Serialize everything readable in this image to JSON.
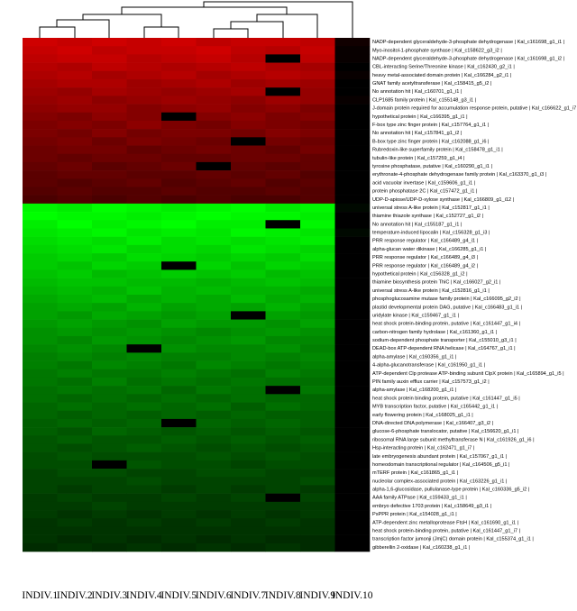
{
  "chart_data": {
    "type": "heatmap",
    "columns": [
      "INDIV.1",
      "INDIV.2",
      "INDIV.3",
      "INDIV.4",
      "INDIV.5",
      "INDIV.6",
      "INDIV.7",
      "INDIV.8",
      "INDIV.9",
      "INDIV.10"
    ],
    "rows": [
      "NADP-dependent glyceraldehyde-3-phosphate dehydrogenase | Kal_c161698_g1_i1 |",
      "Myo-inositol-1-phosphate synthase | Kal_c158622_g3_i2 |",
      "NADP-dependent glyceraldehyde-3-phosphate dehydrogenase | Kal_c161698_g1_i2 |",
      "CBL-interacting Serine/Threonine kinase | Kal_c162430_g2_i1 |",
      "heavy metal-associated domain protein | Kal_c166284_g2_i1 |",
      "GNAT family acetyltransferase | Kal_c158415_g5_i2 |",
      "No annotation hit | Kal_c160701_g1_i1 |",
      "CLP1685 family protein | Kal_c155148_g3_i1 |",
      "J-domain protein required for accumulation response protein, putative | Kal_c166622_g1_i7 |",
      "hypothetical protein | Kal_c166395_g1_i1 |",
      "F-box type zinc finger protein | Kal_c157764_g1_i1 |",
      "No annotation hit | Kal_c157841_g1_i2 |",
      "B-box type zinc finger protein | Kal_c162088_g1_i6 |",
      "Rubredoxin-like superfamily protein | Kal_c158478_g1_i1 |",
      "tubulin-like protein | Kal_c157259_g1_i4 |",
      "tyrosine phosphatase, putative | Kal_c160290_g1_i1 |",
      "erythronate-4-phosphate dehydrogenase family protein | Kal_c163370_g1_i3 |",
      "acid vacuolar invertase | Kal_c159606_g1_i1 |",
      "protein phosphatase 2C | Kal_c157472_g1_i1 |",
      "UDP-D-apiose/UDP-D-xylose synthase | Kal_c166809_g1_i12 |",
      "universal stress A-like protein | Kal_c152817_g1_i1 |",
      "thiamine thiazole synthase | Kal_c152727_g1_i2 |",
      "No annotation hit | Kal_c155187_g1_i1 |",
      "temperature-induced lipocalin | Kal_c156328_g1_i3 |",
      "PRR response regulator | Kal_c166489_g4_i1 |",
      "alpha-glucan water dikinase | Kal_c166285_g1_i1 |",
      "PRR response regulator | Kal_c166489_g4_i3 |",
      "PRR response regulator | Kal_c166489_g4_i2 |",
      "hypothetical protein | Kal_c156328_g1_i2 |",
      "thiamine biosynthesis protein ThiC | Kal_c166027_g2_i1 |",
      "universal stress A-like protein | Kal_c152816_g1_i1 |",
      "phosphoglucosamine mutase family protein | Kal_c166095_g2_i2 |",
      "plastid developmental protein DAG, putative | Kal_c166483_g1_i1 |",
      "uridylate kinase | Kal_c159467_g1_i1 |",
      "heat shock protein-binding protein, putative | Kal_c161447_g1_i4 |",
      "carbon-nitrogen family hydrolase | Kal_c161360_g1_i1 |",
      "sodium-dependent phosphate transporter | Kal_c155010_g3_i1 |",
      "DEAD-box ATP-dependent RNA helicase | Kal_c164767_g1_i1 |",
      "alpha-amylase | Kal_c160356_g1_i1 |",
      "4-alpha-glucanotransferase | Kal_c161950_g1_i1 |",
      "ATP-dependent Clp protease ATP-binding subunit ClpX protein | Kal_c165894_g1_i5 |",
      "PIN family auxin efflux carrier | Kal_c157573_g1_i2 |",
      "alpha-amylase | Kal_c168200_g1_i1 |",
      "heat shock protein binding protein, putative | Kal_c161447_g1_i5 |",
      "MYB transcription factor, putative | Kal_c165442_g1_i1 |",
      "early flowering protein | Kal_c168025_g1_i1 |",
      "DNA-directed DNA polymerase | Kal_c166407_g3_i2 |",
      "glucose-6-phosphate translocator, putative | Kal_c156620_g1_i1 |",
      "ribosomal RNA large subunit methyltransferase N | Kal_c161926_g1_i6 |",
      "Hsp-interacting protein | Kal_c162471_g1_i7 |",
      "late embryogenesis abundant protein | Kal_c157067_g1_i1 |",
      "homeodomain transcriptional regulator | Kal_c164506_g5_i1 |",
      "mTERF protein | Kal_c161865_g1_i1 |",
      "nucleolar complex-associated protein | Kal_c163226_g1_i1 |",
      "alpha-1,6-glucosidase, pullulanase-type protein | Kal_c160336_g5_i2 |",
      "AAA family ATPase | Kal_c159433_g1_i1 |",
      "embryo defective 1703 protein | Kal_c158649_g3_i1 |",
      "PsPPR protein | Kal_c154028_g1_i1 |",
      "ATP-dependent zinc metalloprotease FtsH | Kal_c161690_g1_i1 |",
      "heat shock protein-binding protein, putative | Kal_c161447_g1_i7 |",
      "transcription factor jumonji (JmjC) domain protein | Kal_c155374_g1_i1 |",
      "gibberellin 2-oxidase | Kal_c160238_g1_i1 |"
    ],
    "values": [
      [
        2.5,
        2.4,
        2.5,
        2.4,
        2.5,
        2.3,
        2.4,
        2.4,
        2.3,
        0.2
      ],
      [
        2.4,
        2.5,
        2.3,
        2.4,
        2.4,
        2.5,
        2.3,
        2.2,
        2.4,
        0.1
      ],
      [
        2.3,
        2.4,
        2.4,
        2.2,
        2.3,
        2.4,
        2.2,
        0,
        2.3,
        0.1
      ],
      [
        2.2,
        2.1,
        2.3,
        2.2,
        2.1,
        2.2,
        2.3,
        2.1,
        2.0,
        0
      ],
      [
        2.1,
        2.2,
        2.0,
        2.1,
        2.2,
        2.0,
        2.1,
        2.2,
        2.1,
        0.1
      ],
      [
        2.0,
        2.1,
        2.1,
        1.9,
        2.0,
        2.1,
        1.9,
        2.0,
        1.9,
        0
      ],
      [
        1.9,
        1.8,
        2.0,
        1.9,
        1.8,
        1.9,
        2.0,
        0,
        1.8,
        0
      ],
      [
        1.8,
        1.9,
        1.7,
        1.8,
        1.9,
        1.8,
        1.7,
        1.9,
        1.8,
        0.1
      ],
      [
        1.7,
        1.8,
        1.8,
        1.6,
        1.7,
        1.8,
        1.6,
        1.7,
        1.5,
        0
      ],
      [
        1.6,
        1.5,
        1.7,
        1.6,
        0,
        1.6,
        1.7,
        1.5,
        1.6,
        0
      ],
      [
        1.5,
        1.6,
        1.5,
        1.7,
        1.5,
        1.4,
        1.6,
        1.5,
        1.4,
        0
      ],
      [
        1.5,
        1.4,
        1.6,
        1.4,
        1.5,
        1.5,
        1.4,
        1.6,
        1.5,
        0
      ],
      [
        1.4,
        1.5,
        1.3,
        1.5,
        1.4,
        1.3,
        0,
        1.4,
        1.3,
        0
      ],
      [
        1.3,
        1.4,
        1.4,
        1.2,
        1.3,
        1.4,
        1.3,
        1.2,
        1.4,
        0
      ],
      [
        1.3,
        1.2,
        1.3,
        1.3,
        1.2,
        1.2,
        1.3,
        1.3,
        1.2,
        0
      ],
      [
        1.2,
        1.3,
        1.1,
        1.2,
        1.3,
        0,
        1.2,
        1.1,
        1.2,
        0
      ],
      [
        1.1,
        1.2,
        1.2,
        1.1,
        1.1,
        1.2,
        1.1,
        1.2,
        1.0,
        0
      ],
      [
        1.1,
        1.0,
        1.1,
        1.2,
        1.0,
        1.1,
        1.2,
        1.0,
        1.1,
        0
      ],
      [
        1.0,
        1.1,
        1.0,
        1.0,
        1.1,
        1.0,
        1.0,
        1.1,
        1.0,
        0
      ],
      [
        0.9,
        1.0,
        0.9,
        1.0,
        0.9,
        1.0,
        0.9,
        0.9,
        1.0,
        0
      ],
      [
        -2.9,
        -2.8,
        -3.0,
        -2.9,
        -2.8,
        -2.9,
        -3.0,
        -2.8,
        -2.9,
        -0.1
      ],
      [
        -3.0,
        -2.9,
        -2.9,
        -2.8,
        -2.9,
        -3.0,
        -2.9,
        -2.9,
        -2.8,
        0
      ],
      [
        -2.8,
        -3.0,
        -2.8,
        -2.9,
        -3.0,
        -2.8,
        -2.8,
        0,
        -2.9,
        0
      ],
      [
        -2.7,
        -2.8,
        -2.9,
        -2.7,
        -2.8,
        -2.7,
        -2.9,
        -2.8,
        -2.7,
        -0.1
      ],
      [
        -2.6,
        -2.7,
        -2.6,
        -2.8,
        -2.6,
        -2.7,
        -2.6,
        -2.7,
        -2.8,
        0
      ],
      [
        -2.5,
        -2.6,
        -2.7,
        -2.5,
        -2.6,
        -2.5,
        -2.7,
        -2.6,
        -2.5,
        0
      ],
      [
        -2.4,
        -2.5,
        -2.4,
        -2.6,
        -2.5,
        -2.4,
        -2.5,
        -2.4,
        -2.6,
        0
      ],
      [
        -2.4,
        -2.3,
        -2.5,
        -2.4,
        0,
        -2.5,
        -2.3,
        -2.5,
        -2.4,
        0
      ],
      [
        -2.3,
        -2.4,
        -2.2,
        -2.3,
        -2.4,
        -2.3,
        -2.4,
        -2.2,
        -2.3,
        0
      ],
      [
        -2.2,
        -2.3,
        -2.3,
        -2.2,
        -2.2,
        -2.1,
        -2.2,
        -2.3,
        -2.2,
        0
      ],
      [
        -2.1,
        -2.2,
        -2.1,
        -2.3,
        -2.1,
        -2.2,
        -2.1,
        -2.1,
        -2.0,
        0
      ],
      [
        -2.0,
        -2.1,
        -2.2,
        -2.0,
        -2.1,
        -2.0,
        -2.2,
        -2.0,
        -2.1,
        0
      ],
      [
        -1.9,
        -2.0,
        -1.9,
        -2.1,
        -1.9,
        -2.0,
        -1.9,
        -2.1,
        -1.9,
        0
      ],
      [
        -1.9,
        -1.8,
        -2.0,
        -1.9,
        -1.8,
        -1.9,
        0,
        -1.9,
        -1.8,
        0
      ],
      [
        -1.8,
        -1.9,
        -1.8,
        -1.7,
        -1.9,
        -1.8,
        -1.8,
        -1.7,
        -1.9,
        0
      ],
      [
        -1.7,
        -1.8,
        -1.7,
        -1.8,
        -1.7,
        -1.6,
        -1.7,
        -1.8,
        -1.7,
        0
      ],
      [
        -1.7,
        -1.6,
        -1.8,
        -1.7,
        -1.6,
        -1.7,
        -1.8,
        -1.6,
        -1.6,
        0
      ],
      [
        -1.6,
        -1.7,
        -1.6,
        0,
        -1.7,
        -1.6,
        -1.6,
        -1.7,
        -1.5,
        0
      ],
      [
        -1.5,
        -1.6,
        -1.5,
        -1.6,
        -1.5,
        -1.5,
        -1.6,
        -1.5,
        -1.6,
        0
      ],
      [
        -1.5,
        -1.4,
        -1.6,
        -1.5,
        -1.4,
        -1.6,
        -1.5,
        -1.4,
        -1.5,
        0
      ],
      [
        -1.4,
        -1.5,
        -1.4,
        -1.4,
        -1.5,
        -1.4,
        -1.3,
        -1.5,
        -1.4,
        0
      ],
      [
        -1.4,
        -1.3,
        -1.5,
        -1.3,
        -1.4,
        -1.3,
        -1.4,
        -1.3,
        -1.3,
        0
      ],
      [
        -1.3,
        -1.4,
        -1.3,
        -1.4,
        -1.2,
        -1.4,
        -1.3,
        0,
        -1.4,
        0
      ],
      [
        -1.3,
        -1.2,
        -1.3,
        -1.2,
        -1.3,
        -1.2,
        -1.3,
        -1.2,
        -1.2,
        0
      ],
      [
        -1.2,
        -1.3,
        -1.2,
        -1.3,
        -1.2,
        -1.3,
        -1.1,
        -1.3,
        -1.2,
        0
      ],
      [
        -1.2,
        -1.1,
        -1.2,
        -1.1,
        -1.2,
        -1.1,
        -1.2,
        -1.1,
        -1.1,
        0
      ],
      [
        -1.1,
        -1.2,
        -1.1,
        -1.2,
        0,
        -1.2,
        -1.1,
        -1.2,
        -1.1,
        0
      ],
      [
        -1.1,
        -1.0,
        -1.2,
        -1.1,
        -1.0,
        -1.1,
        -1.0,
        -1.1,
        -1.0,
        0
      ],
      [
        -1.0,
        -1.1,
        -1.0,
        -1.0,
        -1.1,
        -1.0,
        -1.1,
        -1.0,
        -1.1,
        0
      ],
      [
        -1.0,
        -0.9,
        -1.0,
        -1.1,
        -1.0,
        -0.9,
        -1.0,
        -0.9,
        -1.0,
        0
      ],
      [
        -0.9,
        -1.0,
        -0.9,
        -0.9,
        -0.9,
        -1.0,
        -0.9,
        -1.0,
        -0.9,
        0
      ],
      [
        -0.9,
        -0.9,
        0,
        -1.0,
        -0.9,
        -0.9,
        -0.8,
        -0.9,
        -0.9,
        0
      ],
      [
        -0.8,
        -0.9,
        -0.9,
        -0.8,
        -0.8,
        -0.9,
        -0.9,
        -0.8,
        -0.8,
        0
      ],
      [
        -0.8,
        -0.8,
        -0.8,
        -0.9,
        -0.8,
        -0.8,
        -0.8,
        -0.8,
        -0.9,
        0
      ],
      [
        -0.8,
        -0.7,
        -0.8,
        -0.8,
        -0.7,
        -0.8,
        -0.7,
        -0.8,
        -0.7,
        0
      ],
      [
        -0.7,
        -0.8,
        -0.7,
        -0.7,
        -0.8,
        -0.7,
        -0.8,
        0,
        -0.8,
        0
      ],
      [
        -0.7,
        -0.7,
        -0.8,
        -0.7,
        -0.7,
        -0.7,
        -0.7,
        -0.7,
        -0.7,
        0
      ],
      [
        -0.7,
        -0.6,
        -0.7,
        -0.6,
        -0.7,
        -0.6,
        -0.7,
        -0.6,
        -0.7,
        0
      ],
      [
        -0.6,
        -0.7,
        -0.6,
        -0.7,
        -0.6,
        -0.7,
        -0.6,
        -0.7,
        -0.6,
        0
      ],
      [
        -0.6,
        -0.6,
        -0.6,
        -0.6,
        -0.6,
        -0.6,
        -0.6,
        -0.6,
        -0.6,
        0
      ],
      [
        -0.6,
        -0.5,
        -0.6,
        -0.5,
        -0.6,
        -0.5,
        -0.6,
        -0.5,
        -0.5,
        0
      ],
      [
        -0.5,
        -0.6,
        -0.5,
        -0.6,
        -0.5,
        -0.6,
        -0.5,
        -0.6,
        -0.5,
        0
      ]
    ]
  }
}
